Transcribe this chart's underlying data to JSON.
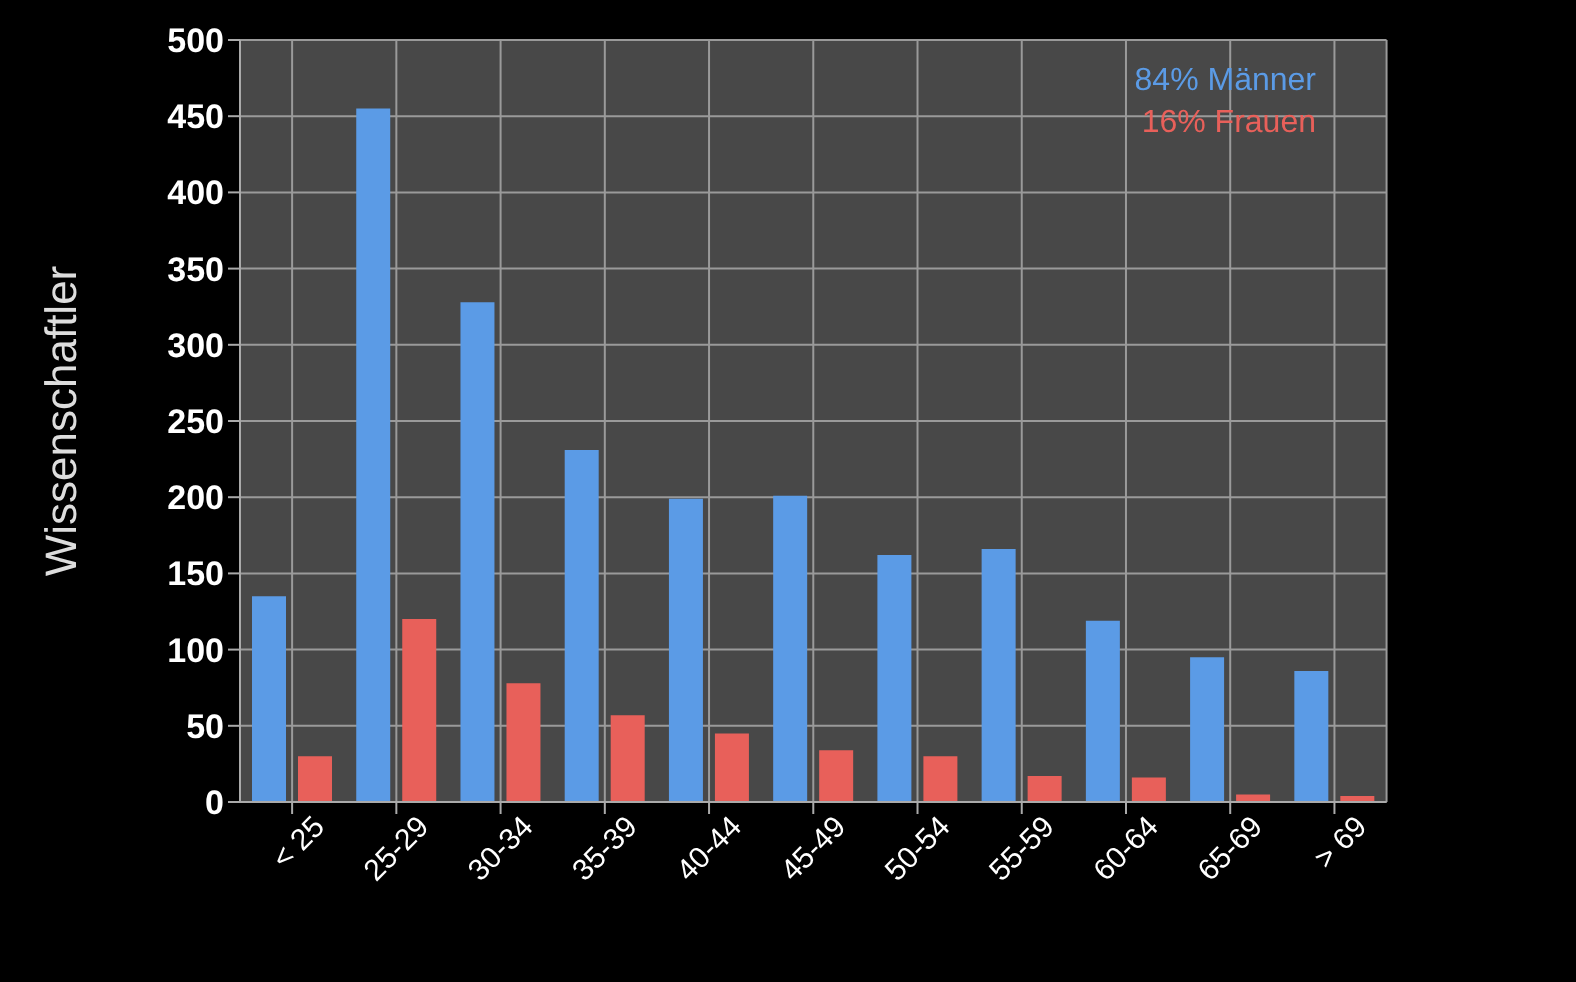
{
  "chart_data": {
    "type": "bar",
    "ylabel": "Wissenschaftler",
    "categories": [
      "< 25",
      "25-29",
      "30-34",
      "35-39",
      "40-44",
      "45-49",
      "50-54",
      "55-59",
      "60-64",
      "65-69",
      "> 69"
    ],
    "series": [
      {
        "name": "84% Männer",
        "color": "#5b9be6",
        "values": [
          135,
          455,
          328,
          231,
          199,
          201,
          162,
          166,
          119,
          95,
          86
        ]
      },
      {
        "name": "16% Frauen",
        "color": "#e8605a",
        "values": [
          30,
          120,
          78,
          57,
          45,
          34,
          30,
          17,
          16,
          5,
          4
        ]
      }
    ],
    "ylim": [
      0,
      500
    ],
    "yticks": [
      0,
      50,
      100,
      150,
      200,
      250,
      300,
      350,
      400,
      450,
      500
    ],
    "grid": true,
    "legend": "top right"
  }
}
